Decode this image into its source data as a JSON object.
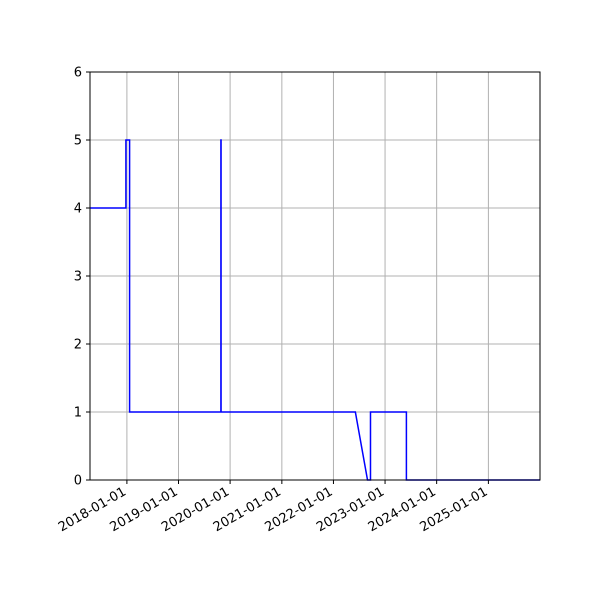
{
  "chart_data": {
    "type": "line",
    "title": "",
    "xlabel": "",
    "ylabel": "",
    "xlim": [
      "2017-04-15",
      "2026-01-01"
    ],
    "ylim": [
      0,
      6
    ],
    "grid": true,
    "x_ticks": [
      "2018-01-01",
      "2019-01-01",
      "2020-01-01",
      "2021-01-01",
      "2022-01-01",
      "2023-01-01",
      "2024-01-01",
      "2025-01-01"
    ],
    "y_ticks": [
      0,
      1,
      2,
      3,
      4,
      5,
      6
    ],
    "series": [
      {
        "color": "#0000ff",
        "points": [
          [
            "2017-04-15",
            4
          ],
          [
            "2017-12-25",
            4
          ],
          [
            "2017-12-25",
            5
          ],
          [
            "2018-01-20",
            5
          ],
          [
            "2018-01-20",
            1
          ],
          [
            "2019-10-28",
            1
          ],
          [
            "2019-10-28",
            5
          ],
          [
            "2019-10-29",
            5
          ],
          [
            "2019-10-29",
            1
          ],
          [
            "2022-06-05",
            1
          ],
          [
            "2022-08-30",
            0
          ],
          [
            "2022-09-20",
            0
          ],
          [
            "2022-09-20",
            1
          ],
          [
            "2023-06-01",
            1
          ],
          [
            "2023-06-01",
            0
          ],
          [
            "2026-01-01",
            0
          ]
        ]
      }
    ]
  }
}
